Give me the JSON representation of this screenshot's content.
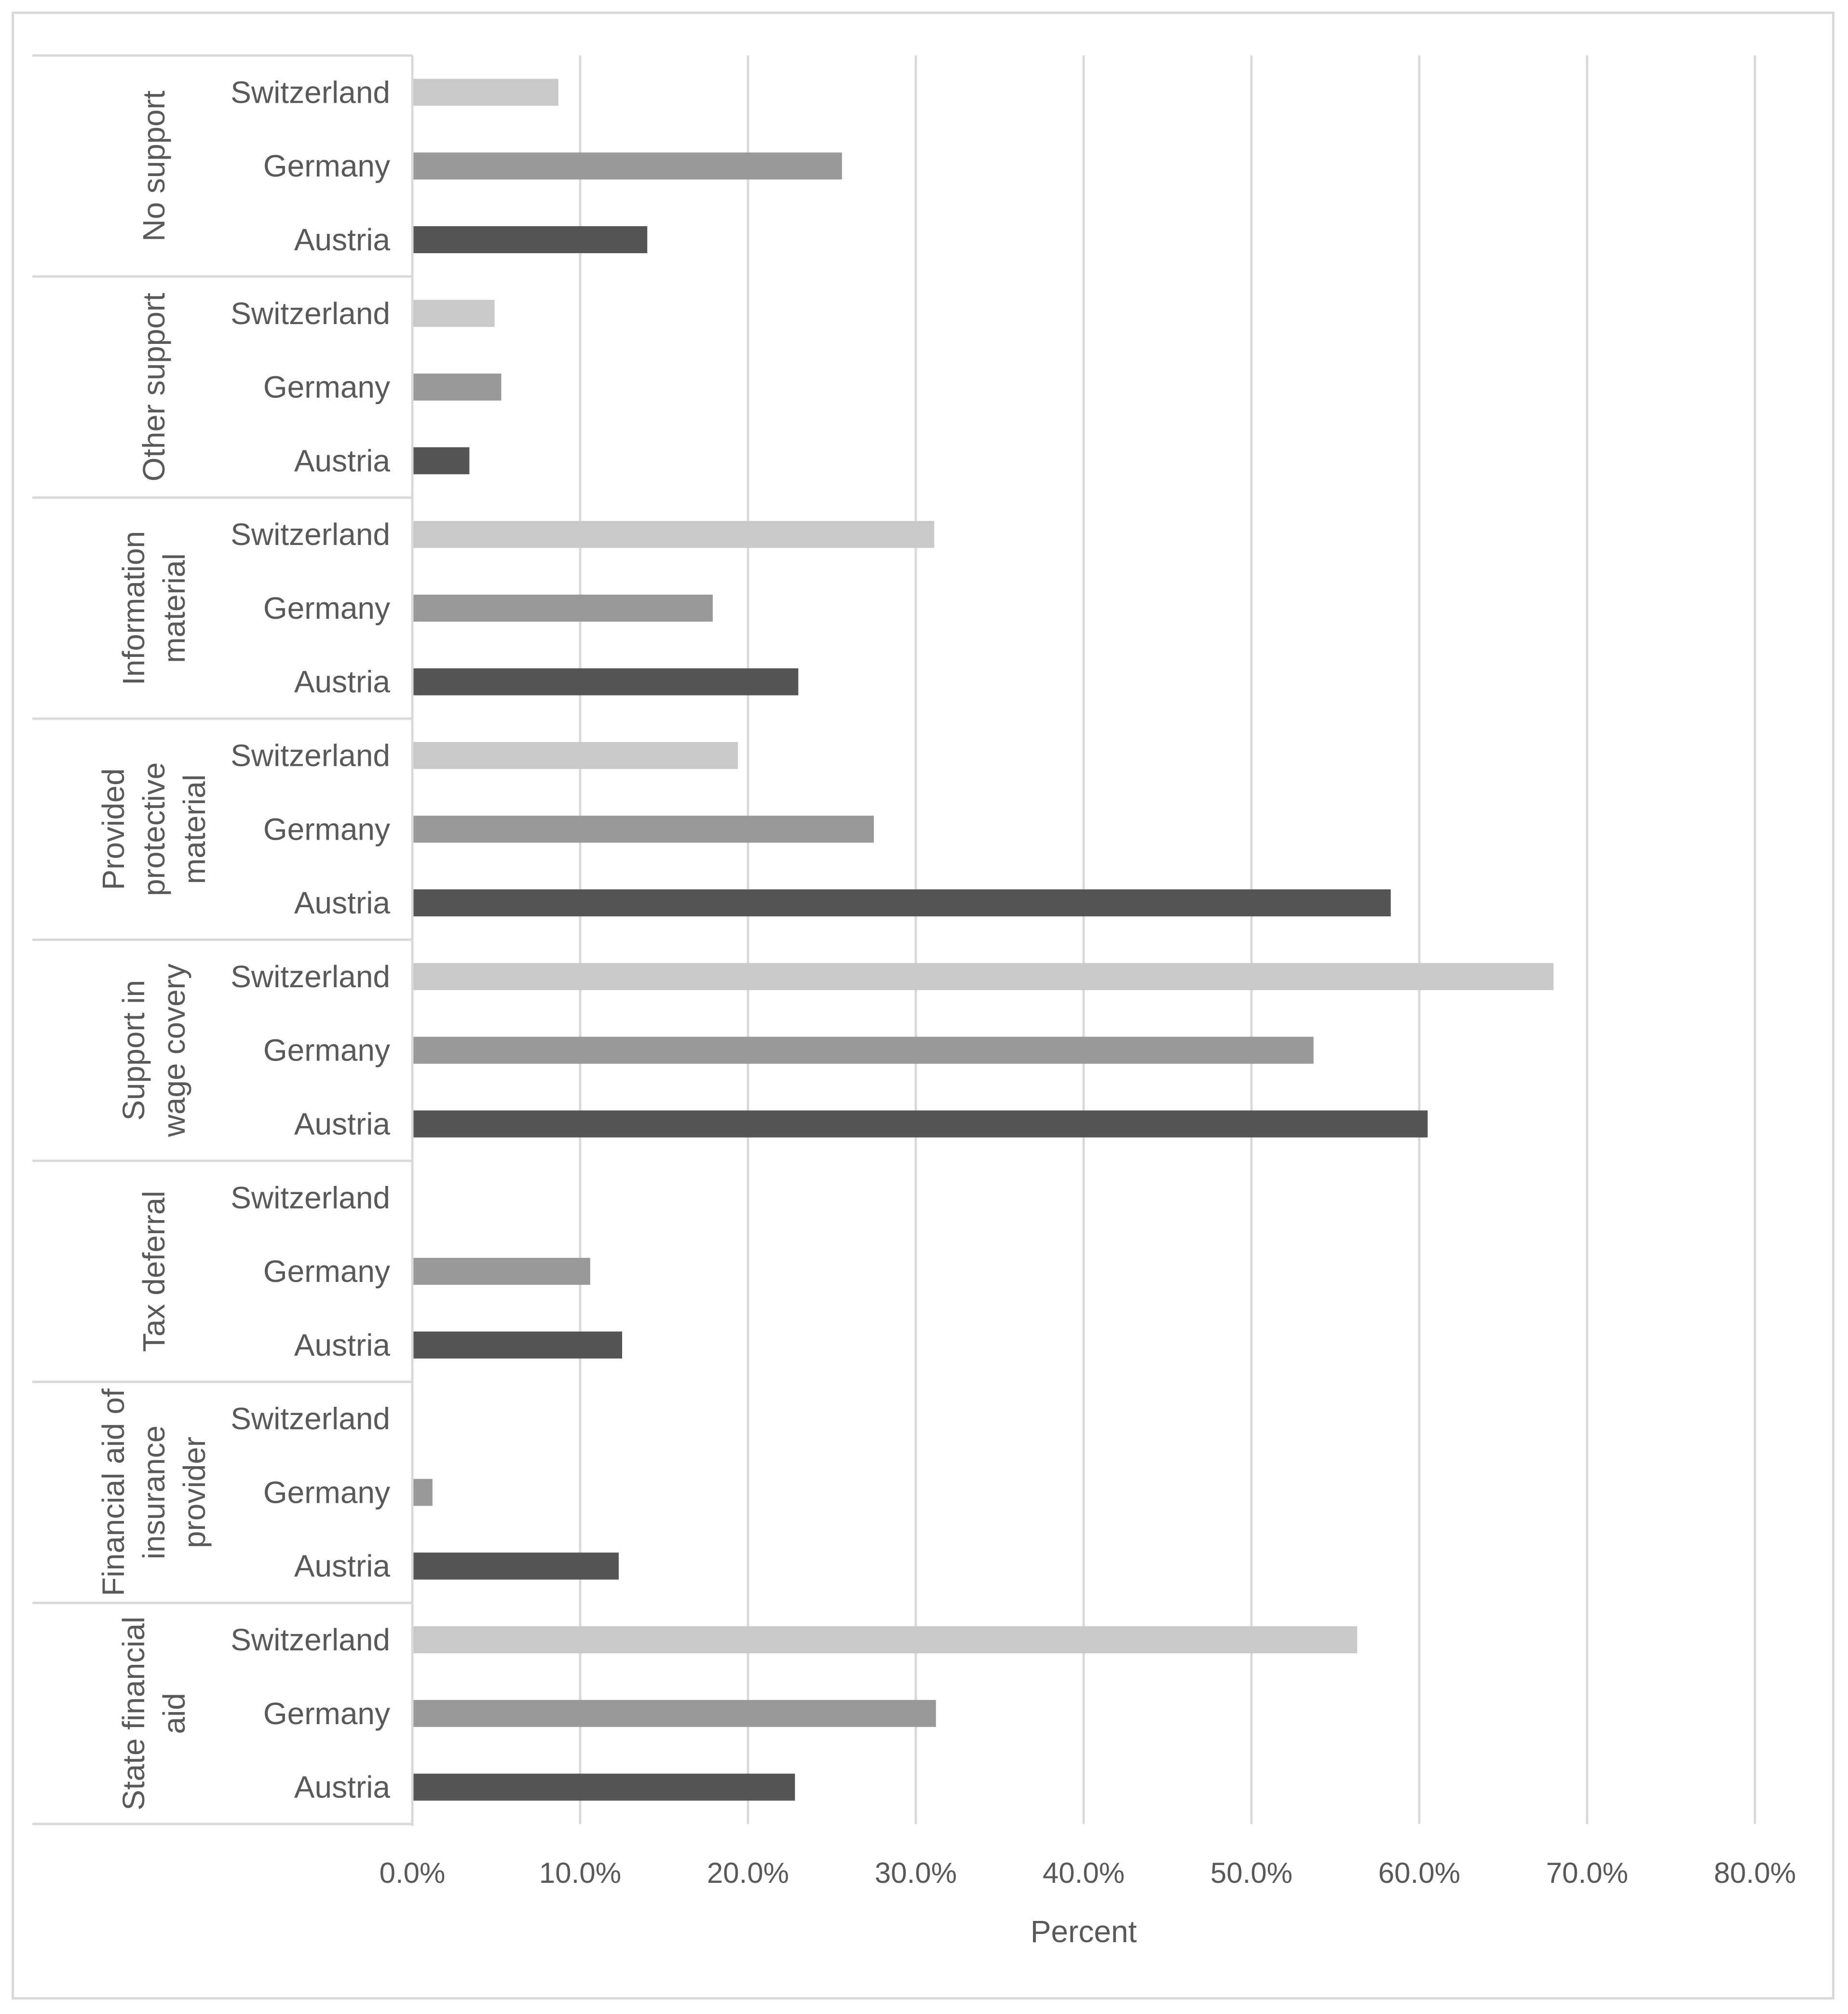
{
  "chart_data": {
    "type": "bar",
    "orientation": "horizontal",
    "title": "",
    "xlabel": "Percent",
    "ylabel": "",
    "xlim": [
      0,
      80
    ],
    "x_ticks": [
      "0.0%",
      "10.0%",
      "20.0%",
      "30.0%",
      "40.0%",
      "50.0%",
      "60.0%",
      "70.0%",
      "80.0%"
    ],
    "grid": true,
    "legend": "none",
    "series_colors": {
      "Switzerland": "#c9c9c9",
      "Germany": "#999999",
      "Austria": "#555555"
    },
    "groups": [
      {
        "label": [
          "No support"
        ],
        "bars": [
          {
            "country": "Switzerland",
            "value": 8.7
          },
          {
            "country": "Germany",
            "value": 25.6
          },
          {
            "country": "Austria",
            "value": 14.0
          }
        ]
      },
      {
        "label": [
          "Other support"
        ],
        "bars": [
          {
            "country": "Switzerland",
            "value": 4.9
          },
          {
            "country": "Germany",
            "value": 5.3
          },
          {
            "country": "Austria",
            "value": 3.4
          }
        ]
      },
      {
        "label": [
          "Information",
          "material"
        ],
        "bars": [
          {
            "country": "Switzerland",
            "value": 31.1
          },
          {
            "country": "Germany",
            "value": 17.9
          },
          {
            "country": "Austria",
            "value": 23.0
          }
        ]
      },
      {
        "label": [
          "Provided",
          "protective",
          "material"
        ],
        "bars": [
          {
            "country": "Switzerland",
            "value": 19.4
          },
          {
            "country": "Germany",
            "value": 27.5
          },
          {
            "country": "Austria",
            "value": 58.3
          }
        ]
      },
      {
        "label": [
          "Support in",
          "wage covery"
        ],
        "bars": [
          {
            "country": "Switzerland",
            "value": 68.0
          },
          {
            "country": "Germany",
            "value": 53.7
          },
          {
            "country": "Austria",
            "value": 60.5
          }
        ]
      },
      {
        "label": [
          "Tax deferral"
        ],
        "bars": [
          {
            "country": "Switzerland",
            "value": 0
          },
          {
            "country": "Germany",
            "value": 10.6
          },
          {
            "country": "Austria",
            "value": 12.5
          }
        ]
      },
      {
        "label": [
          "Financial aid of",
          "insurance",
          "provider"
        ],
        "bars": [
          {
            "country": "Switzerland",
            "value": 0
          },
          {
            "country": "Germany",
            "value": 1.2
          },
          {
            "country": "Austria",
            "value": 12.3
          }
        ]
      },
      {
        "label": [
          "State financial",
          "aid"
        ],
        "bars": [
          {
            "country": "Switzerland",
            "value": 56.3
          },
          {
            "country": "Germany",
            "value": 31.2
          },
          {
            "country": "Austria",
            "value": 22.8
          }
        ]
      }
    ]
  }
}
